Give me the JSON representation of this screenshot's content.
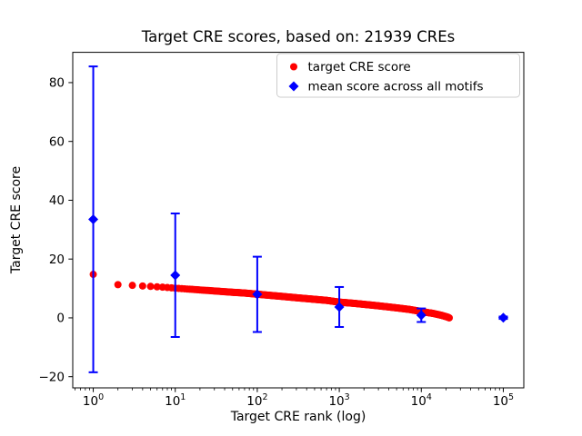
{
  "chart_data": {
    "type": "scatter",
    "title": "Target CRE scores, based on: 21939 CREs",
    "xlabel": "Target CRE rank (log)",
    "ylabel": "Target CRE score",
    "x_scale": "log",
    "x_exp_range": [
      -0.25,
      5.25
    ],
    "x_major_tick_exponents": [
      0,
      1,
      2,
      3,
      4,
      5
    ],
    "ylim": [
      -23.8,
      90.3
    ],
    "y_ticks": [
      -20,
      0,
      20,
      40,
      60,
      80
    ],
    "grid": false,
    "legend": {
      "position": "upper right",
      "entries": [
        {
          "label": "target CRE score",
          "marker": "circle",
          "color": "#ff0000"
        },
        {
          "label": "mean score across all motifs",
          "marker": "diamond",
          "color": "#0000ff"
        }
      ]
    },
    "series": [
      {
        "name": "target CRE score",
        "marker": "circle",
        "color": "#ff0000",
        "rank_range": [
          1,
          21939
        ],
        "anchor_points": [
          [
            1,
            14.8
          ],
          [
            2,
            11.3
          ],
          [
            3,
            11.05
          ],
          [
            4,
            10.85
          ],
          [
            5,
            10.7
          ],
          [
            7,
            10.45
          ],
          [
            10,
            10.1
          ],
          [
            15,
            9.75
          ],
          [
            20,
            9.5
          ],
          [
            30,
            9.15
          ],
          [
            50,
            8.7
          ],
          [
            70,
            8.45
          ],
          [
            100,
            8.05
          ],
          [
            150,
            7.6
          ],
          [
            200,
            7.3
          ],
          [
            300,
            6.85
          ],
          [
            500,
            6.3
          ],
          [
            700,
            5.95
          ],
          [
            1000,
            5.35
          ],
          [
            1500,
            4.95
          ],
          [
            2000,
            4.6
          ],
          [
            3000,
            4.1
          ],
          [
            5000,
            3.4
          ],
          [
            7000,
            2.9
          ],
          [
            10000,
            2.15
          ],
          [
            14000,
            1.5
          ],
          [
            18000,
            0.8
          ],
          [
            21000,
            0.25
          ],
          [
            21939,
            0.0
          ]
        ]
      },
      {
        "name": "mean score across all motifs",
        "marker": "diamond",
        "color": "#0000ff",
        "x": [
          1,
          10,
          100,
          1000,
          10000,
          100000
        ],
        "y": [
          33.5,
          14.5,
          8.0,
          3.7,
          0.9,
          0.05
        ],
        "yerr": [
          52,
          21,
          12.8,
          6.8,
          2.3,
          0.4
        ]
      }
    ]
  }
}
